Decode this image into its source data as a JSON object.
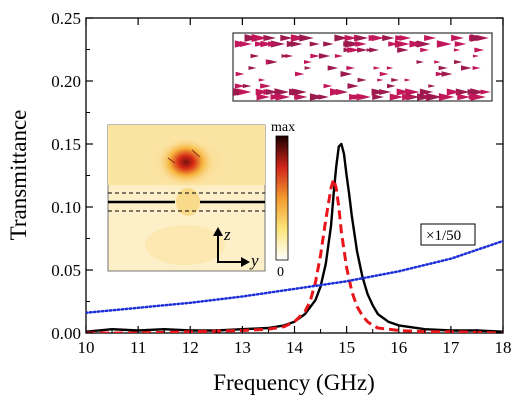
{
  "chart_data": {
    "type": "line",
    "xlabel": "Frequency (GHz)",
    "ylabel": "Transmittance",
    "xlim": [
      10,
      18
    ],
    "ylim": [
      0,
      0.25
    ],
    "x_ticks": [
      "10",
      "11",
      "12",
      "13",
      "14",
      "15",
      "16",
      "17",
      "18"
    ],
    "y_ticks": [
      "0.00",
      "0.05",
      "0.10",
      "0.15",
      "0.20",
      "0.25"
    ],
    "grid": false,
    "series": [
      {
        "style": "solid",
        "color": "#000000",
        "x": [
          10,
          10.5,
          11,
          11.5,
          12,
          12.5,
          13,
          13.5,
          13.8,
          14.0,
          14.2,
          14.4,
          14.5,
          14.6,
          14.7,
          14.75,
          14.8,
          14.85,
          14.9,
          14.95,
          15.0,
          15.05,
          15.1,
          15.2,
          15.3,
          15.4,
          15.5,
          15.6,
          15.8,
          16.0,
          16.5,
          17.0,
          17.5,
          18.0
        ],
        "y": [
          0.001,
          0.003,
          0.002,
          0.003,
          0.002,
          0.002,
          0.003,
          0.004,
          0.006,
          0.009,
          0.015,
          0.026,
          0.037,
          0.055,
          0.085,
          0.11,
          0.132,
          0.148,
          0.15,
          0.142,
          0.125,
          0.11,
          0.093,
          0.065,
          0.045,
          0.031,
          0.022,
          0.015,
          0.009,
          0.006,
          0.003,
          0.002,
          0.002,
          0.001
        ]
      },
      {
        "style": "dashed",
        "color": "#e8161b",
        "x": [
          10,
          11,
          12,
          13,
          13.5,
          13.8,
          14.0,
          14.2,
          14.3,
          14.4,
          14.5,
          14.6,
          14.7,
          14.75,
          14.8,
          14.85,
          14.9,
          15.0,
          15.1,
          15.2,
          15.3,
          15.4,
          15.5,
          15.6,
          15.8,
          16.0,
          16.5,
          17.0,
          18.0
        ],
        "y": [
          0.0,
          0.0,
          0.001,
          0.002,
          0.003,
          0.005,
          0.009,
          0.017,
          0.025,
          0.04,
          0.062,
          0.09,
          0.115,
          0.122,
          0.115,
          0.1,
          0.08,
          0.052,
          0.033,
          0.021,
          0.014,
          0.009,
          0.006,
          0.004,
          0.003,
          0.002,
          0.001,
          0.001,
          0.0
        ]
      },
      {
        "style": "dotted",
        "color": "#1f2fd8",
        "x": [
          10,
          11,
          12,
          13,
          14,
          15,
          16,
          17,
          18
        ],
        "y": [
          0.016,
          0.02,
          0.024,
          0.029,
          0.035,
          0.041,
          0.049,
          0.059,
          0.073
        ]
      }
    ],
    "annotations": [
      "×1/50"
    ]
  },
  "inset_field_map": {
    "colorbar_max_label": "max",
    "colorbar_min_label": "0",
    "axis_z_label": "z",
    "axis_y_label": "y"
  }
}
